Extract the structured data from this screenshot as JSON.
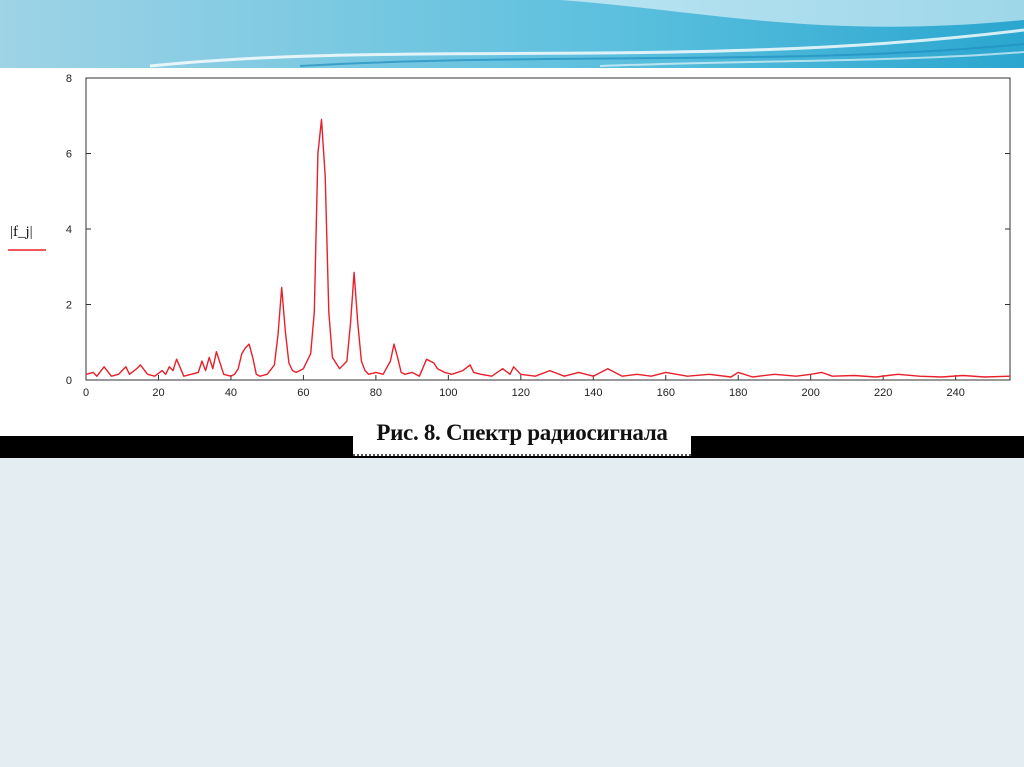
{
  "caption": "Рис. 8. Спектр радиосигнала",
  "chart_data": {
    "type": "line",
    "title": "",
    "xlabel": "",
    "ylabel": "|f_j|",
    "xlim": [
      0,
      255
    ],
    "ylim": [
      0,
      8
    ],
    "x_ticks": [
      0,
      20,
      40,
      60,
      80,
      100,
      120,
      140,
      160,
      180,
      200,
      220,
      240
    ],
    "y_ticks": [
      0,
      2,
      4,
      6,
      8
    ],
    "grid": false,
    "legend": "left, beside y axis",
    "series": [
      {
        "color": "#e8202a",
        "x": [
          0,
          2,
          3,
          5,
          7,
          9,
          11,
          12,
          14,
          15,
          17,
          19,
          21,
          22,
          23,
          24,
          25,
          27,
          29,
          31,
          32,
          33,
          34,
          35,
          36,
          38,
          40,
          41,
          42,
          43,
          44,
          45,
          46,
          47,
          48,
          50,
          52,
          53,
          54,
          55,
          56,
          57,
          58,
          60,
          62,
          63,
          64,
          65,
          66,
          67,
          68,
          70,
          72,
          73,
          74,
          75,
          76,
          77,
          78,
          80,
          82,
          84,
          85,
          86,
          87,
          88,
          90,
          92,
          94,
          95,
          96,
          97,
          99,
          101,
          104,
          106,
          107,
          109,
          112,
          115,
          117,
          118,
          120,
          124,
          128,
          132,
          136,
          140,
          144,
          148,
          152,
          156,
          160,
          166,
          172,
          178,
          180,
          184,
          190,
          196,
          200,
          203,
          206,
          212,
          218,
          224,
          230,
          236,
          242,
          248,
          255
        ],
        "y": [
          0.15,
          0.2,
          0.1,
          0.35,
          0.1,
          0.15,
          0.35,
          0.15,
          0.3,
          0.4,
          0.15,
          0.1,
          0.25,
          0.15,
          0.35,
          0.25,
          0.55,
          0.1,
          0.15,
          0.2,
          0.5,
          0.25,
          0.6,
          0.3,
          0.75,
          0.15,
          0.1,
          0.15,
          0.3,
          0.7,
          0.85,
          0.95,
          0.6,
          0.15,
          0.1,
          0.15,
          0.4,
          1.2,
          2.45,
          1.3,
          0.45,
          0.25,
          0.2,
          0.3,
          0.7,
          1.8,
          6.0,
          6.9,
          5.4,
          1.8,
          0.6,
          0.3,
          0.5,
          1.5,
          2.85,
          1.5,
          0.5,
          0.25,
          0.15,
          0.2,
          0.15,
          0.5,
          0.95,
          0.6,
          0.2,
          0.15,
          0.2,
          0.1,
          0.55,
          0.5,
          0.45,
          0.3,
          0.2,
          0.15,
          0.25,
          0.4,
          0.2,
          0.15,
          0.1,
          0.3,
          0.15,
          0.35,
          0.15,
          0.1,
          0.25,
          0.1,
          0.2,
          0.1,
          0.3,
          0.1,
          0.15,
          0.1,
          0.2,
          0.1,
          0.15,
          0.08,
          0.2,
          0.08,
          0.15,
          0.1,
          0.15,
          0.2,
          0.1,
          0.12,
          0.08,
          0.15,
          0.1,
          0.08,
          0.12,
          0.08,
          0.1
        ]
      }
    ]
  }
}
